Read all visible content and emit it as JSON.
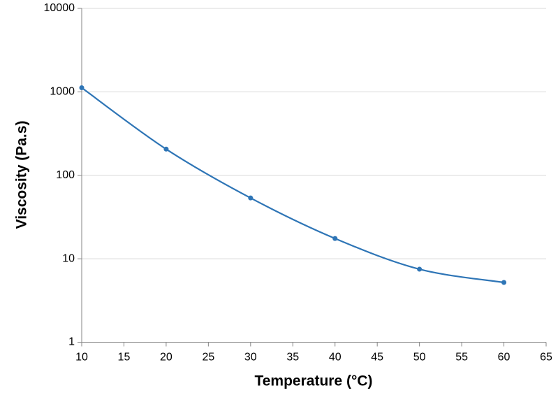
{
  "chart_data": {
    "type": "line",
    "x_label": "Temperature (°C)",
    "y_label": "Viscosity (Pa.s)",
    "x": [
      10,
      20,
      30,
      40,
      50,
      60
    ],
    "series": [
      {
        "name": "Viscosity",
        "color": "#2e75b6",
        "values": [
          1120,
          206,
          53.5,
          17.5,
          7.5,
          5.2
        ]
      }
    ],
    "xlim": [
      10,
      65
    ],
    "xticks": [
      10,
      15,
      20,
      25,
      30,
      35,
      40,
      45,
      50,
      55,
      60,
      65
    ],
    "ylim": [
      1,
      10000
    ],
    "yticks": [
      1,
      10,
      100,
      1000,
      10000
    ],
    "y_scale": "log",
    "grid": true,
    "smooth": true
  }
}
